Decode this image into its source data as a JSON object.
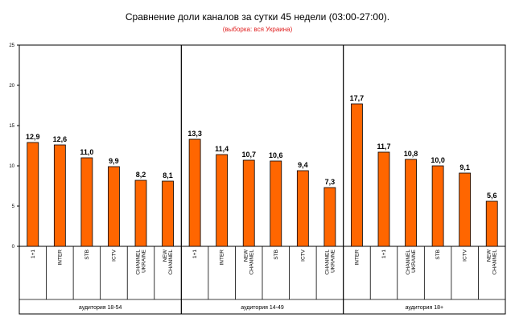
{
  "chart_data": {
    "type": "bar",
    "title": "Сравнение доли каналов за сутки 45 недели (03:00-27:00).",
    "subtitle": "(выборка: вся Украина)",
    "ylim": [
      0,
      25
    ],
    "yticks": [
      "0",
      "5",
      "10",
      "15",
      "20",
      "25"
    ],
    "bar_color": "#ff6600",
    "groups": [
      {
        "name": "аудитория 18-54",
        "categories": [
          "1+1",
          "INTER",
          "STB",
          "ICTV",
          "CHANNEL UKRAINE",
          "NEW CHANNEL"
        ],
        "values": [
          12.9,
          12.6,
          11.0,
          9.9,
          8.2,
          8.1
        ],
        "labels": [
          "12,9",
          "12,6",
          "11,0",
          "9,9",
          "8,2",
          "8,1"
        ]
      },
      {
        "name": "аудитория 14-49",
        "categories": [
          "1+1",
          "INTER",
          "NEW CHANNEL",
          "STB",
          "ICTV",
          "CHANNEL UKRAINE"
        ],
        "values": [
          13.3,
          11.4,
          10.7,
          10.6,
          9.4,
          7.3
        ],
        "labels": [
          "13,3",
          "11,4",
          "10,7",
          "10,6",
          "9,4",
          "7,3"
        ]
      },
      {
        "name": "аудитория 18+",
        "categories": [
          "INTER",
          "1+1",
          "CHANNEL UKRAINE",
          "STB",
          "ICTV",
          "NEW CHANNEL"
        ],
        "values": [
          17.7,
          11.7,
          10.8,
          10.0,
          9.1,
          5.6
        ],
        "labels": [
          "17,7",
          "11,7",
          "10,8",
          "10,0",
          "9,1",
          "5,6"
        ]
      }
    ]
  }
}
